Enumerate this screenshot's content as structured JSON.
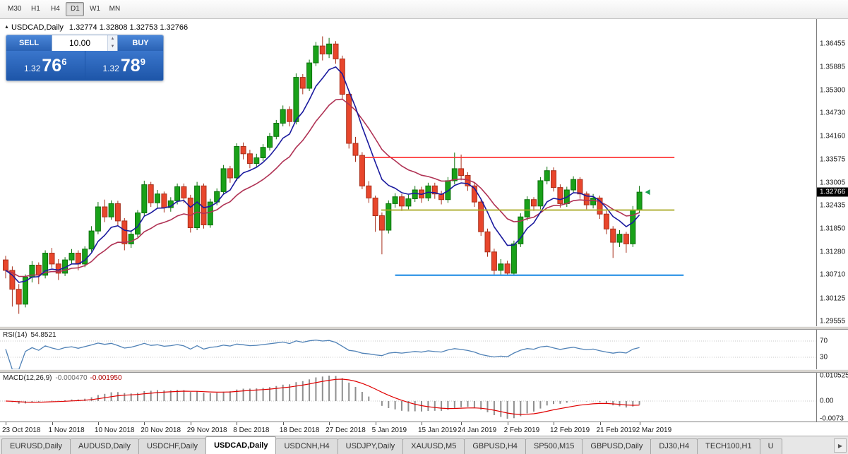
{
  "toolbar": {
    "timeframes": [
      "M30",
      "H1",
      "H4",
      "D1",
      "W1",
      "MN"
    ],
    "active": "D1"
  },
  "header": {
    "symbol_text": "USDCAD,Daily",
    "ohlc_text": "1.32774 1.32808 1.32753 1.32766"
  },
  "trade_panel": {
    "sell_label": "SELL",
    "buy_label": "BUY",
    "volume": "10.00",
    "sell_price": {
      "prefix": "1.32",
      "big": "76",
      "sup": "6"
    },
    "buy_price": {
      "prefix": "1.32",
      "big": "78",
      "sup": "9"
    }
  },
  "price_scale": {
    "labels": [
      "1.36455",
      "1.35885",
      "1.35300",
      "1.34730",
      "1.34160",
      "1.33575",
      "1.33005",
      "1.32435",
      "1.31850",
      "1.31280",
      "1.30710",
      "1.30125",
      "1.29555"
    ],
    "current": "1.32766"
  },
  "indicators": {
    "rsi": {
      "name": "RSI(14)",
      "value": "54.8521",
      "levels": [
        "70",
        "30"
      ],
      "period": 14
    },
    "macd": {
      "name": "MACD(12,26,9)",
      "main_value": "-0.000470",
      "signal_value": "-0.001950",
      "scale_labels": [
        "0.010525",
        "0.00",
        "-0.0073"
      ],
      "fast": 12,
      "slow": 26,
      "signal": 9
    }
  },
  "time_axis": {
    "labels": [
      {
        "text": "23 Oct 2018",
        "i": 0
      },
      {
        "text": "1 Nov 2018",
        "i": 7
      },
      {
        "text": "10 Nov 2018",
        "i": 14
      },
      {
        "text": "20 Nov 2018",
        "i": 21
      },
      {
        "text": "29 Nov 2018",
        "i": 28
      },
      {
        "text": "8 Dec 2018",
        "i": 35
      },
      {
        "text": "18 Dec 2018",
        "i": 42
      },
      {
        "text": "27 Dec 2018",
        "i": 49
      },
      {
        "text": "5 Jan 2019",
        "i": 56
      },
      {
        "text": "15 Jan 2019",
        "i": 63
      },
      {
        "text": "24 Jan 2019",
        "i": 69
      },
      {
        "text": "2 Feb 2019",
        "i": 76
      },
      {
        "text": "12 Feb 2019",
        "i": 83
      },
      {
        "text": "21 Feb 2019",
        "i": 90
      },
      {
        "text": "2 Mar 2019",
        "i": 96
      }
    ]
  },
  "tabs": [
    {
      "label": "EURUSD,Daily",
      "active": false
    },
    {
      "label": "AUDUSD,Daily",
      "active": false
    },
    {
      "label": "USDCHF,Daily",
      "active": false
    },
    {
      "label": "USDCAD,Daily",
      "active": true
    },
    {
      "label": "USDCNH,H4",
      "active": false
    },
    {
      "label": "USDJPY,Daily",
      "active": false
    },
    {
      "label": "XAUUSD,M5",
      "active": false
    },
    {
      "label": "GBPUSD,H4",
      "active": false
    },
    {
      "label": "SP500,M15",
      "active": false
    },
    {
      "label": "GBPUSD,Daily",
      "active": false
    },
    {
      "label": "DJ30,H4",
      "active": false
    },
    {
      "label": "TECH100,H1",
      "active": false
    },
    {
      "label": "U",
      "active": false
    }
  ],
  "icons": {
    "window_marker": "▲",
    "spinner_up": "▲",
    "spinner_down": "▼",
    "tab_scroll": "▶"
  },
  "colors": {
    "candle_up": "#19a119",
    "candle_up_border": "#0c710c",
    "candle_down": "#e8462c",
    "candle_down_border": "#a8301c",
    "ma_fast": "#1a1a9e",
    "ma_slow": "#b03355",
    "rsi_line": "#4f81b6",
    "rsi_level": "#c8c8c8",
    "macd_hist": "#8f8f8f",
    "macd_signal": "#e00000",
    "arrow_green": "#18a050",
    "accent_blue": "#2a62b4"
  },
  "chart_data": {
    "type": "candlestick",
    "symbol": "USDCAD",
    "timeframe": "Daily",
    "last_price": 1.32766,
    "ma_fast_period": 7,
    "ma_slow_period": 16,
    "hlines": [
      {
        "name": "resistance",
        "price": 1.3363,
        "i1": 54.4,
        "i2": 101.3,
        "color": "#ff3333",
        "width": 1.7
      },
      {
        "name": "pivot",
        "price": 1.3232,
        "i1": 56.9,
        "i2": 101.3,
        "color": "#a6a61e",
        "width": 1.7
      },
      {
        "name": "support",
        "price": 1.307,
        "i1": 59.0,
        "i2": 102.7,
        "color": "#3f9ce8",
        "width": 2.4
      }
    ],
    "candles": [
      [
        1.3108,
        1.3118,
        1.3062,
        1.3082
      ],
      [
        1.3082,
        1.3092,
        1.2992,
        1.3035
      ],
      [
        1.3035,
        1.3048,
        1.2974,
        1.2998
      ],
      [
        1.2998,
        1.3072,
        1.299,
        1.3065
      ],
      [
        1.3065,
        1.3105,
        1.3052,
        1.3095
      ],
      [
        1.3095,
        1.3102,
        1.3048,
        1.307
      ],
      [
        1.307,
        1.3132,
        1.3062,
        1.3125
      ],
      [
        1.3125,
        1.3138,
        1.3088,
        1.3098
      ],
      [
        1.3098,
        1.311,
        1.3058,
        1.3075
      ],
      [
        1.3075,
        1.3115,
        1.3068,
        1.3108
      ],
      [
        1.3108,
        1.3135,
        1.3098,
        1.3125
      ],
      [
        1.3125,
        1.3132,
        1.3082,
        1.3098
      ],
      [
        1.3098,
        1.3142,
        1.309,
        1.3135
      ],
      [
        1.3135,
        1.3192,
        1.3128,
        1.318
      ],
      [
        1.318,
        1.3252,
        1.3172,
        1.324
      ],
      [
        1.324,
        1.3258,
        1.3202,
        1.3215
      ],
      [
        1.3215,
        1.3256,
        1.3208,
        1.3248
      ],
      [
        1.3248,
        1.3255,
        1.3192,
        1.3205
      ],
      [
        1.3205,
        1.3212,
        1.3132,
        1.3148
      ],
      [
        1.3148,
        1.3182,
        1.3138,
        1.3172
      ],
      [
        1.3172,
        1.3232,
        1.3164,
        1.3225
      ],
      [
        1.3225,
        1.3305,
        1.3218,
        1.3295
      ],
      [
        1.3295,
        1.3302,
        1.324,
        1.325
      ],
      [
        1.325,
        1.3282,
        1.3238,
        1.3272
      ],
      [
        1.3272,
        1.3278,
        1.3226,
        1.3238
      ],
      [
        1.3238,
        1.3264,
        1.3228,
        1.3255
      ],
      [
        1.3255,
        1.3298,
        1.3246,
        1.329
      ],
      [
        1.329,
        1.3298,
        1.325,
        1.3262
      ],
      [
        1.3262,
        1.327,
        1.3176,
        1.3188
      ],
      [
        1.3188,
        1.3302,
        1.3182,
        1.3292
      ],
      [
        1.3292,
        1.3298,
        1.3186,
        1.3195
      ],
      [
        1.3195,
        1.326,
        1.3188,
        1.3252
      ],
      [
        1.3252,
        1.3286,
        1.3244,
        1.3278
      ],
      [
        1.3278,
        1.3344,
        1.327,
        1.3335
      ],
      [
        1.3335,
        1.3342,
        1.33,
        1.3312
      ],
      [
        1.3312,
        1.3398,
        1.3305,
        1.339
      ],
      [
        1.339,
        1.34,
        1.3358,
        1.3372
      ],
      [
        1.3372,
        1.3382,
        1.3336,
        1.3348
      ],
      [
        1.3348,
        1.3372,
        1.3338,
        1.3362
      ],
      [
        1.3362,
        1.3396,
        1.3354,
        1.3388
      ],
      [
        1.3388,
        1.3424,
        1.338,
        1.3415
      ],
      [
        1.3415,
        1.3456,
        1.3408,
        1.3448
      ],
      [
        1.3448,
        1.3492,
        1.344,
        1.3482
      ],
      [
        1.3482,
        1.349,
        1.344,
        1.3452
      ],
      [
        1.3452,
        1.3572,
        1.3445,
        1.3562
      ],
      [
        1.3562,
        1.357,
        1.352,
        1.3535
      ],
      [
        1.3535,
        1.3606,
        1.3528,
        1.3598
      ],
      [
        1.3598,
        1.365,
        1.359,
        1.364
      ],
      [
        1.364,
        1.3664,
        1.3604,
        1.362
      ],
      [
        1.362,
        1.366,
        1.361,
        1.3645
      ],
      [
        1.3645,
        1.3652,
        1.3596,
        1.3608
      ],
      [
        1.3608,
        1.3616,
        1.3506,
        1.352
      ],
      [
        1.352,
        1.3528,
        1.3385,
        1.3398
      ],
      [
        1.3398,
        1.3414,
        1.3352,
        1.3368
      ],
      [
        1.3368,
        1.3376,
        1.3284,
        1.3292
      ],
      [
        1.3292,
        1.3304,
        1.325,
        1.3262
      ],
      [
        1.3262,
        1.3268,
        1.3178,
        1.3218
      ],
      [
        1.3218,
        1.3226,
        1.3122,
        1.3182
      ],
      [
        1.3182,
        1.3256,
        1.3174,
        1.3248
      ],
      [
        1.3248,
        1.3274,
        1.3238,
        1.3265
      ],
      [
        1.3265,
        1.3272,
        1.323,
        1.3242
      ],
      [
        1.3242,
        1.327,
        1.3234,
        1.326
      ],
      [
        1.326,
        1.3292,
        1.3252,
        1.3282
      ],
      [
        1.3282,
        1.329,
        1.325,
        1.3262
      ],
      [
        1.3262,
        1.33,
        1.3254,
        1.3292
      ],
      [
        1.3292,
        1.33,
        1.326,
        1.3272
      ],
      [
        1.3272,
        1.328,
        1.3246,
        1.3258
      ],
      [
        1.3258,
        1.3314,
        1.325,
        1.3305
      ],
      [
        1.3305,
        1.3375,
        1.3296,
        1.3335
      ],
      [
        1.3335,
        1.337,
        1.3306,
        1.3318
      ],
      [
        1.3318,
        1.3326,
        1.328,
        1.3292
      ],
      [
        1.3292,
        1.33,
        1.324,
        1.3252
      ],
      [
        1.3252,
        1.3258,
        1.3168,
        1.3178
      ],
      [
        1.3178,
        1.3186,
        1.3116,
        1.3128
      ],
      [
        1.3128,
        1.3136,
        1.3068,
        1.3082
      ],
      [
        1.3082,
        1.311,
        1.307,
        1.3098
      ],
      [
        1.3098,
        1.3106,
        1.307,
        1.3075
      ],
      [
        1.3075,
        1.3156,
        1.3068,
        1.3148
      ],
      [
        1.3148,
        1.3224,
        1.314,
        1.3215
      ],
      [
        1.3215,
        1.3266,
        1.3206,
        1.3258
      ],
      [
        1.3258,
        1.3264,
        1.323,
        1.3242
      ],
      [
        1.3242,
        1.3314,
        1.3234,
        1.3305
      ],
      [
        1.3305,
        1.334,
        1.3296,
        1.333
      ],
      [
        1.333,
        1.3338,
        1.3278,
        1.3288
      ],
      [
        1.3288,
        1.3296,
        1.3238,
        1.3248
      ],
      [
        1.3248,
        1.329,
        1.324,
        1.3282
      ],
      [
        1.3282,
        1.3316,
        1.3274,
        1.3308
      ],
      [
        1.3308,
        1.3314,
        1.326,
        1.3272
      ],
      [
        1.3272,
        1.3278,
        1.3234,
        1.3245
      ],
      [
        1.3245,
        1.3272,
        1.3236,
        1.3262
      ],
      [
        1.3262,
        1.3268,
        1.321,
        1.3222
      ],
      [
        1.3222,
        1.323,
        1.3172,
        1.3185
      ],
      [
        1.3185,
        1.3192,
        1.3113,
        1.3152
      ],
      [
        1.3152,
        1.3182,
        1.314,
        1.3172
      ],
      [
        1.3172,
        1.3178,
        1.3126,
        1.3148
      ],
      [
        1.3148,
        1.3242,
        1.314,
        1.3232
      ],
      [
        1.3232,
        1.3292,
        1.3224,
        1.32766
      ]
    ]
  }
}
